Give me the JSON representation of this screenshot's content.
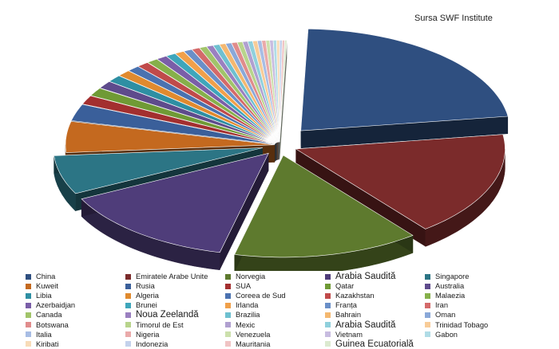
{
  "source_note": "Sursa SWF Institute",
  "chart_data": {
    "type": "pie",
    "title": "",
    "style": "3d-exploded",
    "legend_position": "bottom",
    "legend_columns": 5,
    "slices": [
      {
        "label": "China",
        "value": 21.6,
        "color": "#2f4f80"
      },
      {
        "label": "Emiratele Arabe Unite",
        "value": 16.2,
        "color": "#7b2b2b"
      },
      {
        "label": "Norvegia",
        "value": 14.0,
        "color": "#5e7a2e"
      },
      {
        "label": "Arabia Saudită",
        "value": 13.5,
        "color": "#4f3d7a"
      },
      {
        "label": "Singapore",
        "value": 6.0,
        "color": "#2c7585"
      },
      {
        "label": "Kuweit",
        "value": 4.8,
        "color": "#c4691f"
      },
      {
        "label": "Rusia",
        "value": 2.6,
        "color": "#3a5f9a"
      },
      {
        "label": "SUA",
        "value": 1.4,
        "color": "#a32f2f"
      },
      {
        "label": "Qatar",
        "value": 1.3,
        "color": "#6f9a35"
      },
      {
        "label": "Australia",
        "value": 1.2,
        "color": "#5e4b8c"
      },
      {
        "label": "Libia",
        "value": 1.1,
        "color": "#2e8fa3"
      },
      {
        "label": "Algeria",
        "value": 1.0,
        "color": "#e08a2e"
      },
      {
        "label": "Coreea de Sud",
        "value": 0.95,
        "color": "#4a72b0"
      },
      {
        "label": "Kazakhstan",
        "value": 0.9,
        "color": "#c04a4a"
      },
      {
        "label": "Malaezia",
        "value": 0.85,
        "color": "#86b04a"
      },
      {
        "label": "Azerbaidjan",
        "value": 0.8,
        "color": "#7a5ea8"
      },
      {
        "label": "Brunei",
        "value": 0.75,
        "color": "#3ea6bb"
      },
      {
        "label": "Irlanda",
        "value": 0.7,
        "color": "#f0a04a"
      },
      {
        "label": "Franța",
        "value": 0.65,
        "color": "#6a8fc8"
      },
      {
        "label": "Iran",
        "value": 0.6,
        "color": "#d46a6a"
      },
      {
        "label": "Canada",
        "value": 0.55,
        "color": "#a1c46a"
      },
      {
        "label": "Noua Zeelandă",
        "value": 0.5,
        "color": "#9a80c0"
      },
      {
        "label": "Brazilia",
        "value": 0.48,
        "color": "#6ec0d0"
      },
      {
        "label": "Bahrain",
        "value": 0.46,
        "color": "#f4b870"
      },
      {
        "label": "Oman",
        "value": 0.44,
        "color": "#8aa8d8"
      },
      {
        "label": "Botswana",
        "value": 0.42,
        "color": "#e08c8c"
      },
      {
        "label": "Timorul de Est",
        "value": 0.4,
        "color": "#b8d48c"
      },
      {
        "label": "Mexic",
        "value": 0.38,
        "color": "#b0a0d0"
      },
      {
        "label": "Arabia Saudită",
        "value": 0.36,
        "color": "#90d0dc"
      },
      {
        "label": "Trinidad Tobago",
        "value": 0.34,
        "color": "#f8cc98"
      },
      {
        "label": "Italia",
        "value": 0.32,
        "color": "#a8bde4"
      },
      {
        "label": "Nigeria",
        "value": 0.3,
        "color": "#eaaaaa"
      },
      {
        "label": "Venezuela",
        "value": 0.28,
        "color": "#cce0ac"
      },
      {
        "label": "Vietnam",
        "value": 0.26,
        "color": "#c8bce0"
      },
      {
        "label": "Gabon",
        "value": 0.24,
        "color": "#b0dce6"
      },
      {
        "label": "Kiribati",
        "value": 0.22,
        "color": "#f8dcb8"
      },
      {
        "label": "Indonezia",
        "value": 0.2,
        "color": "#c4d2ec"
      },
      {
        "label": "Mauritania",
        "value": 0.18,
        "color": "#f0c4c4"
      },
      {
        "label": "Guinea Ecuatorială",
        "value": 0.16,
        "color": "#dcead0"
      }
    ]
  }
}
